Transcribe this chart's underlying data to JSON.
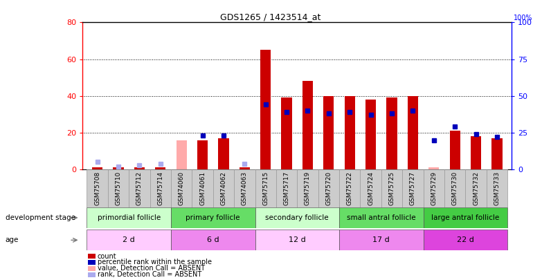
{
  "title": "GDS1265 / 1423514_at",
  "samples": [
    "GSM75708",
    "GSM75710",
    "GSM75712",
    "GSM75714",
    "GSM74060",
    "GSM74061",
    "GSM74062",
    "GSM74063",
    "GSM75715",
    "GSM75717",
    "GSM75719",
    "GSM75720",
    "GSM75722",
    "GSM75724",
    "GSM75725",
    "GSM75727",
    "GSM75729",
    "GSM75730",
    "GSM75732",
    "GSM75733"
  ],
  "red_values": [
    1,
    1,
    1,
    1,
    16,
    16,
    17,
    1,
    65,
    39,
    48,
    40,
    40,
    38,
    39,
    40,
    1,
    21,
    18,
    17
  ],
  "blue_values": [
    5,
    2,
    3,
    4,
    null,
    23,
    23,
    4,
    44,
    39,
    40,
    38,
    39,
    37,
    38,
    40,
    20,
    29,
    24,
    22
  ],
  "absent_red": [
    false,
    false,
    false,
    false,
    true,
    false,
    false,
    false,
    false,
    false,
    false,
    false,
    false,
    false,
    false,
    false,
    true,
    false,
    false,
    false
  ],
  "absent_blue": [
    true,
    true,
    true,
    true,
    false,
    false,
    false,
    true,
    false,
    false,
    false,
    false,
    false,
    false,
    false,
    false,
    false,
    false,
    false,
    false
  ],
  "group_labels": [
    "primordial follicle",
    "primary follicle",
    "secondary follicle",
    "small antral follicle",
    "large antral follicle"
  ],
  "group_starts": [
    0,
    4,
    8,
    12,
    16
  ],
  "group_ends": [
    4,
    8,
    12,
    16,
    20
  ],
  "group_colors": [
    "#ccffcc",
    "#66dd66",
    "#ccffcc",
    "#66dd66",
    "#44cc44"
  ],
  "age_labels": [
    "2 d",
    "6 d",
    "12 d",
    "17 d",
    "22 d"
  ],
  "age_colors": [
    "#ffccff",
    "#ee88ee",
    "#ffccff",
    "#ee88ee",
    "#dd44dd"
  ],
  "ylim_left": [
    0,
    80
  ],
  "ylim_right": [
    0,
    100
  ],
  "yticks_left": [
    0,
    20,
    40,
    60,
    80
  ],
  "yticks_right": [
    0,
    25,
    50,
    75,
    100
  ],
  "red_color": "#cc0000",
  "red_absent_color": "#ffaaaa",
  "blue_color": "#0000bb",
  "blue_absent_color": "#aaaaee",
  "legend_items": [
    {
      "label": "count",
      "color": "#cc0000"
    },
    {
      "label": "percentile rank within the sample",
      "color": "#0000bb"
    },
    {
      "label": "value, Detection Call = ABSENT",
      "color": "#ffaaaa"
    },
    {
      "label": "rank, Detection Call = ABSENT",
      "color": "#aaaaee"
    }
  ]
}
